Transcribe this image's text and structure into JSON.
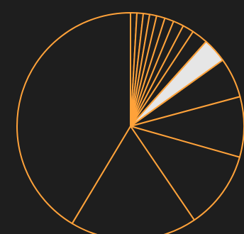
{
  "chart_data": {
    "type": "pie",
    "title": "",
    "start_angle_deg": 90,
    "direction": "clockwise",
    "values": [
      0.9,
      0.9,
      0.9,
      1.0,
      1.2,
      1.3,
      1.5,
      1.6,
      2.3,
      3.5,
      5.7,
      8.6,
      11.1,
      18.1,
      41.4
    ],
    "highlighted_index": 9,
    "colors": {
      "background": "#1e1e1e",
      "slice_fill": "#1e1e1e",
      "slice_stroke": "#ffa23a",
      "highlight_fill": "#e6e6e6"
    }
  }
}
